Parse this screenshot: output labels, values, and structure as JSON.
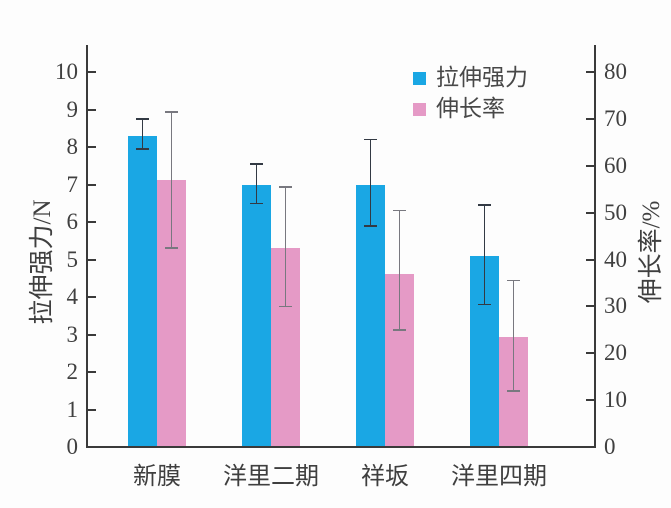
{
  "chart_data": {
    "type": "bar",
    "title": "",
    "categories": [
      "新膜",
      "洋里二期",
      "祥坂",
      "洋里四期"
    ],
    "series": [
      {
        "name": "拉伸强力",
        "axis": "left",
        "color": "#1AA7E4",
        "error_color": "#333a44",
        "values": [
          8.3,
          7.0,
          7.0,
          5.1
        ],
        "error_low": [
          7.95,
          6.5,
          5.9,
          3.8
        ],
        "error_high": [
          8.75,
          7.55,
          8.2,
          6.45
        ]
      },
      {
        "name": "伸长率",
        "axis": "right",
        "color": "#E59AC6",
        "error_color": "#78787f",
        "values": [
          57,
          42.5,
          37,
          23.5
        ],
        "error_low": [
          42.5,
          30,
          25,
          12
        ],
        "error_high": [
          71.5,
          55.5,
          50.5,
          35.5
        ]
      }
    ],
    "left_axis": {
      "label": "拉伸强力/N",
      "min": 0,
      "max": 10,
      "step": 1,
      "ticks": [
        0,
        1,
        2,
        3,
        4,
        5,
        6,
        7,
        8,
        9,
        10
      ]
    },
    "right_axis": {
      "label": "伸长率/%",
      "min": 0,
      "max": 80,
      "step": 10,
      "ticks": [
        0,
        10,
        20,
        30,
        40,
        50,
        60,
        70,
        80
      ]
    },
    "legend": {
      "position": "top-right"
    },
    "grid": false
  },
  "colors": {
    "bar_blue": "#1AA7E4",
    "bar_pink": "#E59AC6",
    "axis_line": "#3a3a3a",
    "text": "#3f3f3f",
    "background": "#fdfdfd"
  }
}
